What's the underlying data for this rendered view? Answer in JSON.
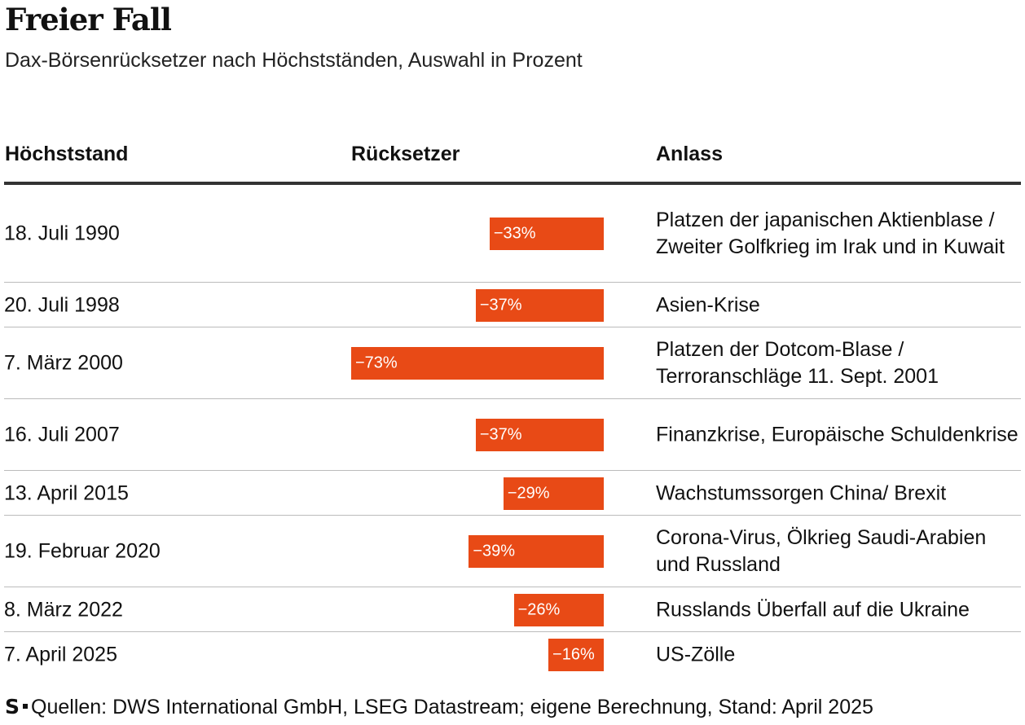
{
  "header": {
    "title": "Freier Fall",
    "subtitle": "Dax-Börsenrücksetzer nach Höchstständen, Auswahl in Prozent"
  },
  "columns": {
    "date": "Höchststand",
    "drop": "Rücksetzer",
    "reason": "Anlass"
  },
  "colors": {
    "bar": "#E84A16",
    "label_on_bar": "#FFFFFF",
    "label_off_bar": "#111111"
  },
  "chart_data": {
    "type": "bar",
    "orientation": "horizontal",
    "categories": [
      "18. Juli 1990",
      "20. Juli 1998",
      "7. März 2000",
      "16. Juli 2007",
      "13. April 2015",
      "19. Februar 2020",
      "8. März 2022",
      "7. April 2025"
    ],
    "values": [
      -33,
      -37,
      -73,
      -37,
      -29,
      -39,
      -26,
      -16
    ],
    "value_labels": [
      "−33%",
      "−37%",
      "−73%",
      "−37%",
      "−29%",
      "−39%",
      "−26%",
      "−16%"
    ],
    "reasons": [
      "Platzen der japanischen Aktienblase / Zweiter Golfkrieg im Irak und in Kuwait",
      "Asien-Krise",
      "Platzen der Dotcom-Blase / Terroranschläge 11. Sept. 2001",
      "Finanzkrise, Europäische Schuldenkrise",
      "Wachstumssorgen China/ Brexit",
      "Corona-Virus, Ölkrieg Saudi-Arabien und Russland",
      "Russlands Überfall auf die Ukraine",
      "US-Zölle"
    ],
    "unit": "%"
  },
  "footer": {
    "logo": "S",
    "source": "Quellen: DWS International GmbH, LSEG Datastream; eigene Berechnung, Stand: April 2025"
  }
}
